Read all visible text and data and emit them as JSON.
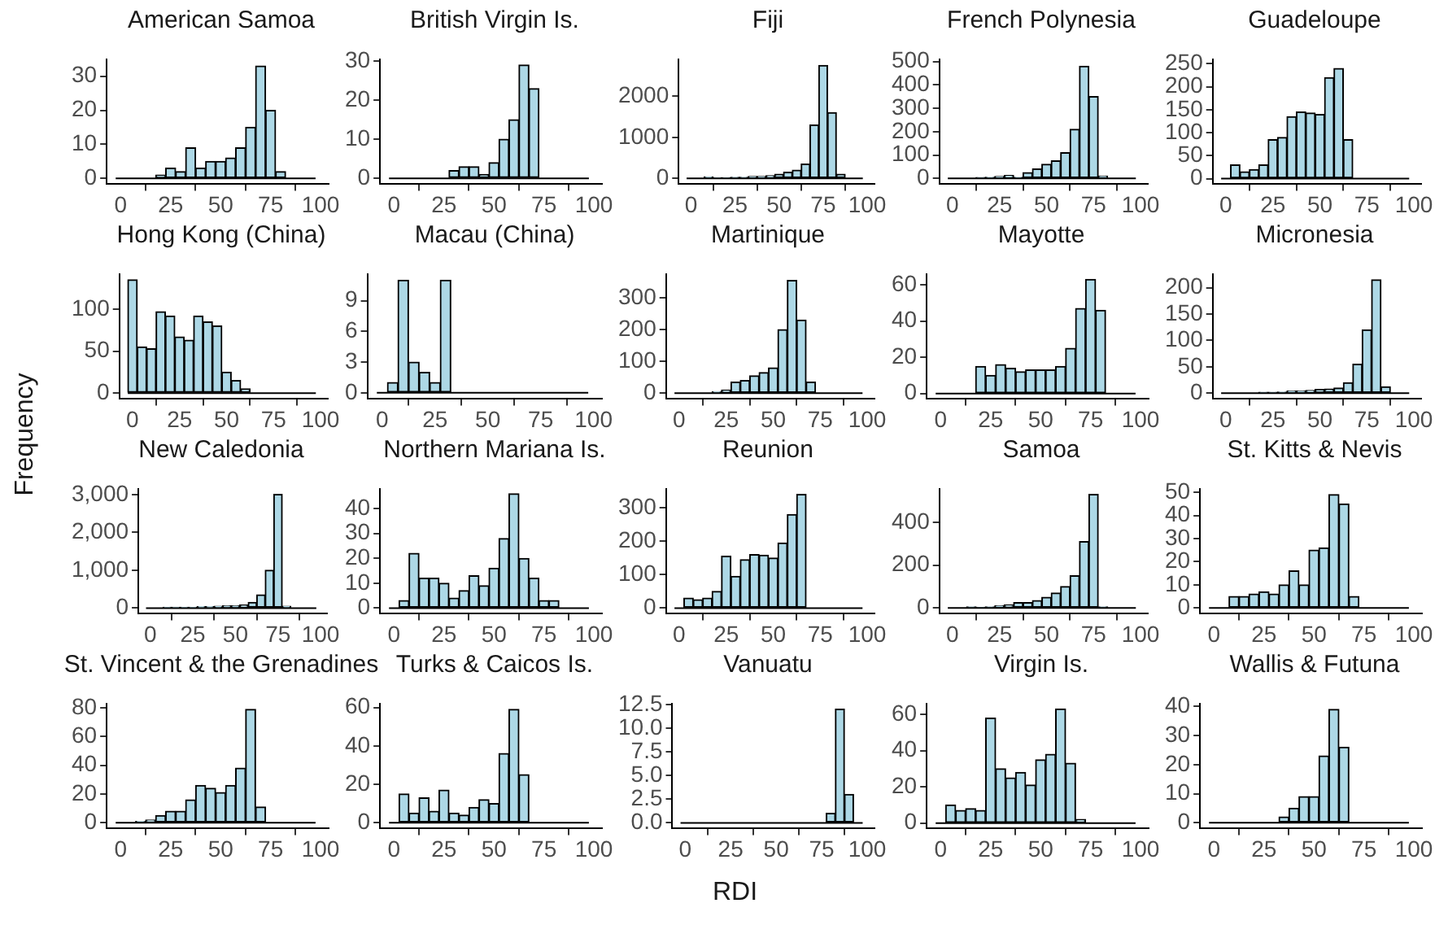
{
  "chart_data": [
    {
      "type": "histogram",
      "title": "American Samoa",
      "bins": [
        -2.5,
        2.5,
        7.5,
        12.5,
        17.5,
        22.5,
        27.5,
        32.5,
        37.5,
        42.5,
        47.5,
        52.5,
        57.5,
        62.5,
        67.5,
        72.5,
        77.5,
        82.5,
        87.5,
        92.5,
        97.5
      ],
      "values": [
        0,
        0,
        0,
        0,
        1,
        3,
        2,
        9,
        3,
        5,
        5,
        6,
        9,
        15,
        33,
        20,
        2,
        0,
        0,
        0
      ],
      "color": "#add8e6",
      "xlim": [
        -7,
        104
      ],
      "xticks": [
        0,
        25,
        50,
        75,
        100
      ],
      "ylim": [
        -1.7,
        35
      ],
      "yticks": [
        0,
        10,
        20,
        30
      ]
    },
    {
      "type": "histogram",
      "title": "British Virgin Is.",
      "bins": [
        -2.5,
        2.5,
        7.5,
        12.5,
        17.5,
        22.5,
        27.5,
        32.5,
        37.5,
        42.5,
        47.5,
        52.5,
        57.5,
        62.5,
        67.5,
        72.5,
        77.5,
        82.5,
        87.5,
        92.5,
        97.5
      ],
      "values": [
        0,
        0,
        0,
        0,
        0,
        0,
        2,
        3,
        3,
        1,
        4,
        10,
        15,
        29,
        23,
        0,
        0,
        0,
        0,
        0
      ],
      "color": "#add8e6",
      "xlim": [
        -7,
        104
      ],
      "xticks": [
        0,
        25,
        50,
        75,
        100
      ],
      "ylim": [
        -1.5,
        30.5
      ],
      "yticks": [
        0,
        10,
        20,
        30
      ]
    },
    {
      "type": "histogram",
      "title": "Fiji",
      "bins": [
        -2.5,
        2.5,
        7.5,
        12.5,
        17.5,
        22.5,
        27.5,
        32.5,
        37.5,
        42.5,
        47.5,
        52.5,
        57.5,
        62.5,
        67.5,
        72.5,
        77.5,
        82.5,
        87.5,
        92.5,
        97.5
      ],
      "values": [
        0,
        0,
        40,
        20,
        20,
        30,
        30,
        50,
        50,
        70,
        100,
        150,
        200,
        350,
        1300,
        2750,
        1600,
        100,
        0,
        0
      ],
      "color": "#add8e6",
      "xlim": [
        -7,
        104
      ],
      "xticks": [
        0,
        25,
        50,
        75,
        100
      ],
      "ylim": [
        -140,
        2900
      ],
      "yticks": [
        0,
        1000,
        2000
      ]
    },
    {
      "type": "histogram",
      "title": "French Polynesia",
      "bins": [
        -2.5,
        2.5,
        7.5,
        12.5,
        17.5,
        22.5,
        27.5,
        32.5,
        37.5,
        42.5,
        47.5,
        52.5,
        57.5,
        62.5,
        67.5,
        72.5,
        77.5,
        82.5,
        87.5,
        92.5,
        97.5
      ],
      "values": [
        0,
        0,
        0,
        3,
        5,
        8,
        12,
        5,
        25,
        40,
        60,
        75,
        110,
        210,
        480,
        350,
        10,
        0,
        0,
        0
      ],
      "color": "#add8e6",
      "xlim": [
        -7,
        104
      ],
      "xticks": [
        0,
        25,
        50,
        75,
        100
      ],
      "ylim": [
        -25,
        510
      ],
      "yticks": [
        0,
        100,
        200,
        300,
        400,
        500
      ]
    },
    {
      "type": "histogram",
      "title": "Guadeloupe",
      "bins": [
        -2.5,
        2.5,
        7.5,
        12.5,
        17.5,
        22.5,
        27.5,
        32.5,
        37.5,
        42.5,
        47.5,
        52.5,
        57.5,
        62.5,
        67.5,
        72.5,
        77.5,
        82.5,
        87.5,
        92.5,
        97.5
      ],
      "values": [
        0,
        30,
        15,
        20,
        30,
        85,
        90,
        135,
        145,
        143,
        140,
        220,
        240,
        85,
        0,
        0,
        0,
        0,
        0,
        0
      ],
      "color": "#add8e6",
      "xlim": [
        -7,
        104
      ],
      "xticks": [
        0,
        25,
        50,
        75,
        100
      ],
      "ylim": [
        -12,
        260
      ],
      "yticks": [
        0,
        50,
        100,
        150,
        200,
        250
      ]
    },
    {
      "type": "histogram",
      "title": "Hong Kong (China)",
      "bins": [
        -2.5,
        2.5,
        7.5,
        12.5,
        17.5,
        22.5,
        27.5,
        32.5,
        37.5,
        42.5,
        47.5,
        52.5,
        57.5,
        62.5,
        67.5,
        72.5,
        77.5,
        82.5,
        87.5,
        92.5,
        97.5
      ],
      "values": [
        135,
        55,
        53,
        97,
        92,
        67,
        63,
        92,
        85,
        80,
        25,
        15,
        5,
        0,
        0,
        0,
        0,
        0,
        0,
        0
      ],
      "color": "#add8e6",
      "xlim": [
        -7,
        104
      ],
      "xticks": [
        0,
        25,
        50,
        75,
        100
      ],
      "ylim": [
        -7,
        142
      ],
      "yticks": [
        0,
        50,
        100
      ]
    },
    {
      "type": "histogram",
      "title": "Macau (China)",
      "bins": [
        -2.5,
        2.5,
        7.5,
        12.5,
        17.5,
        22.5,
        27.5,
        32.5,
        37.5,
        42.5,
        47.5,
        52.5,
        57.5,
        62.5,
        67.5,
        72.5,
        77.5,
        82.5,
        87.5,
        92.5,
        97.5
      ],
      "values": [
        0,
        1,
        11,
        3,
        2,
        1,
        11,
        0,
        0,
        0,
        0,
        0,
        0,
        0,
        0,
        0,
        0,
        0,
        0,
        0
      ],
      "color": "#add8e6",
      "xlim": [
        -7,
        104
      ],
      "xticks": [
        0,
        25,
        50,
        75,
        100
      ],
      "ylim": [
        -0.6,
        11.6
      ],
      "yticks": [
        0,
        3,
        6,
        9
      ]
    },
    {
      "type": "histogram",
      "title": "Martinique",
      "bins": [
        -2.5,
        2.5,
        7.5,
        12.5,
        17.5,
        22.5,
        27.5,
        32.5,
        37.5,
        42.5,
        47.5,
        52.5,
        57.5,
        62.5,
        67.5,
        72.5,
        77.5,
        82.5,
        87.5,
        92.5,
        97.5
      ],
      "values": [
        0,
        0,
        0,
        0,
        5,
        10,
        35,
        40,
        55,
        65,
        80,
        200,
        355,
        230,
        35,
        0,
        0,
        0,
        0,
        0
      ],
      "color": "#add8e6",
      "xlim": [
        -7,
        104
      ],
      "xticks": [
        0,
        25,
        50,
        75,
        100
      ],
      "ylim": [
        -18,
        375
      ],
      "yticks": [
        0,
        100,
        200,
        300
      ]
    },
    {
      "type": "histogram",
      "title": "Mayotte",
      "bins": [
        -2.5,
        2.5,
        7.5,
        12.5,
        17.5,
        22.5,
        27.5,
        32.5,
        37.5,
        42.5,
        47.5,
        52.5,
        57.5,
        62.5,
        67.5,
        72.5,
        77.5,
        82.5,
        87.5,
        92.5,
        97.5
      ],
      "values": [
        0,
        0,
        0,
        0,
        15,
        10,
        16,
        14,
        12,
        13,
        13,
        13,
        15,
        25,
        47,
        63,
        46,
        0,
        0,
        0
      ],
      "color": "#add8e6",
      "xlim": [
        -7,
        104
      ],
      "xticks": [
        0,
        25,
        50,
        75,
        100
      ],
      "ylim": [
        -3,
        66
      ],
      "yticks": [
        0,
        20,
        40,
        60
      ]
    },
    {
      "type": "histogram",
      "title": "Micronesia",
      "bins": [
        -2.5,
        2.5,
        7.5,
        12.5,
        17.5,
        22.5,
        27.5,
        32.5,
        37.5,
        42.5,
        47.5,
        52.5,
        57.5,
        62.5,
        67.5,
        72.5,
        77.5,
        82.5,
        87.5,
        92.5,
        97.5
      ],
      "values": [
        0,
        0,
        0,
        0,
        1,
        1,
        2,
        4,
        4,
        5,
        7,
        8,
        10,
        20,
        55,
        120,
        215,
        12,
        0,
        0
      ],
      "color": "#add8e6",
      "xlim": [
        -7,
        104
      ],
      "xticks": [
        0,
        25,
        50,
        75,
        100
      ],
      "ylim": [
        -11,
        226
      ],
      "yticks": [
        0,
        50,
        100,
        150,
        200
      ]
    },
    {
      "type": "histogram",
      "title": "New Caledonia",
      "ylabel": "Frequency",
      "bins": [
        -2.5,
        2.5,
        7.5,
        12.5,
        17.5,
        22.5,
        27.5,
        32.5,
        37.5,
        42.5,
        47.5,
        52.5,
        57.5,
        62.5,
        67.5,
        72.5,
        77.5,
        82.5,
        87.5,
        92.5,
        97.5
      ],
      "values": [
        0,
        0,
        20,
        10,
        20,
        20,
        40,
        40,
        50,
        60,
        60,
        80,
        150,
        350,
        1000,
        3000,
        50,
        0,
        0,
        0
      ],
      "color": "#add8e6",
      "xlim": [
        -7,
        104
      ],
      "xticks": [
        0,
        25,
        50,
        75,
        100
      ],
      "ylim": [
        -150,
        3150
      ],
      "yticks": [
        0,
        {
          "value": 1000,
          "label": "1,000"
        },
        {
          "value": 2000,
          "label": "2,000"
        },
        {
          "value": 3000,
          "label": "3,000"
        }
      ]
    },
    {
      "type": "histogram",
      "title": "Northern Mariana Is.",
      "bins": [
        -2.5,
        2.5,
        7.5,
        12.5,
        17.5,
        22.5,
        27.5,
        32.5,
        37.5,
        42.5,
        47.5,
        52.5,
        57.5,
        62.5,
        67.5,
        72.5,
        77.5,
        82.5,
        87.5,
        92.5,
        97.5
      ],
      "values": [
        0,
        3,
        22,
        12,
        12,
        10,
        4,
        7,
        13,
        9,
        16,
        28,
        46,
        20,
        12,
        3,
        3,
        0,
        0,
        0
      ],
      "color": "#add8e6",
      "xlim": [
        -7,
        104
      ],
      "xticks": [
        0,
        25,
        50,
        75,
        100
      ],
      "ylim": [
        -2.3,
        48
      ],
      "yticks": [
        0,
        10,
        20,
        30,
        40
      ]
    },
    {
      "type": "histogram",
      "title": "Reunion",
      "bins": [
        -2.5,
        2.5,
        7.5,
        12.5,
        17.5,
        22.5,
        27.5,
        32.5,
        37.5,
        42.5,
        47.5,
        52.5,
        57.5,
        62.5,
        67.5,
        72.5,
        77.5,
        82.5,
        87.5,
        92.5,
        97.5
      ],
      "values": [
        0,
        30,
        25,
        30,
        50,
        155,
        95,
        145,
        160,
        158,
        150,
        195,
        280,
        340,
        0,
        0,
        0,
        0,
        0,
        0
      ],
      "color": "#add8e6",
      "xlim": [
        -7,
        104
      ],
      "xticks": [
        0,
        25,
        50,
        75,
        100
      ],
      "ylim": [
        -17,
        357
      ],
      "yticks": [
        0,
        100,
        200,
        300
      ]
    },
    {
      "type": "histogram",
      "title": "Samoa",
      "bins": [
        -2.5,
        2.5,
        7.5,
        12.5,
        17.5,
        22.5,
        27.5,
        32.5,
        37.5,
        42.5,
        47.5,
        52.5,
        57.5,
        62.5,
        67.5,
        72.5,
        77.5,
        82.5,
        87.5,
        92.5,
        97.5
      ],
      "values": [
        0,
        0,
        5,
        3,
        5,
        10,
        15,
        25,
        25,
        35,
        50,
        70,
        100,
        150,
        310,
        530,
        5,
        0,
        0,
        0
      ],
      "color": "#add8e6",
      "xlim": [
        -7,
        104
      ],
      "xticks": [
        0,
        25,
        50,
        75,
        100
      ],
      "ylim": [
        -27,
        556
      ],
      "yticks": [
        0,
        200,
        400
      ]
    },
    {
      "type": "histogram",
      "title": "St. Kitts & Nevis",
      "bins": [
        -2.5,
        2.5,
        7.5,
        12.5,
        17.5,
        22.5,
        27.5,
        32.5,
        37.5,
        42.5,
        47.5,
        52.5,
        57.5,
        62.5,
        67.5,
        72.5,
        77.5,
        82.5,
        87.5,
        92.5,
        97.5
      ],
      "values": [
        0,
        0,
        5,
        5,
        6,
        7,
        6,
        10,
        16,
        10,
        25,
        26,
        49,
        45,
        5,
        0,
        0,
        0,
        0,
        0
      ],
      "color": "#add8e6",
      "xlim": [
        -7,
        104
      ],
      "xticks": [
        0,
        25,
        50,
        75,
        100
      ],
      "ylim": [
        -2.5,
        51.5
      ],
      "yticks": [
        0,
        10,
        20,
        30,
        40,
        50
      ]
    },
    {
      "type": "histogram",
      "title": "St. Vincent & the Grenadines",
      "bins": [
        -2.5,
        2.5,
        7.5,
        12.5,
        17.5,
        22.5,
        27.5,
        32.5,
        37.5,
        42.5,
        47.5,
        52.5,
        57.5,
        62.5,
        67.5,
        72.5,
        77.5,
        82.5,
        87.5,
        92.5,
        97.5
      ],
      "values": [
        0,
        0,
        1,
        2,
        5,
        8,
        8,
        16,
        26,
        24,
        21,
        26,
        38,
        79,
        11,
        0,
        0,
        0,
        0,
        0
      ],
      "color": "#add8e6",
      "xlim": [
        -7,
        104
      ],
      "xticks": [
        0,
        25,
        50,
        75,
        100
      ],
      "ylim": [
        -4,
        83
      ],
      "yticks": [
        0,
        20,
        40,
        60,
        80
      ]
    },
    {
      "type": "histogram",
      "title": "Turks & Caicos Is.",
      "bins": [
        -2.5,
        2.5,
        7.5,
        12.5,
        17.5,
        22.5,
        27.5,
        32.5,
        37.5,
        42.5,
        47.5,
        52.5,
        57.5,
        62.5,
        67.5,
        72.5,
        77.5,
        82.5,
        87.5,
        92.5,
        97.5
      ],
      "values": [
        0,
        15,
        5,
        13,
        6,
        17,
        5,
        4,
        8,
        12,
        10,
        36,
        59,
        25,
        0,
        0,
        0,
        0,
        0,
        0
      ],
      "color": "#add8e6",
      "xlim": [
        -7,
        104
      ],
      "xticks": [
        0,
        25,
        50,
        75,
        100
      ],
      "ylim": [
        -3,
        62
      ],
      "yticks": [
        0,
        20,
        40,
        60
      ]
    },
    {
      "type": "histogram",
      "title": "Vanuatu",
      "xlabel": "RDI",
      "bins": [
        -2.5,
        2.5,
        7.5,
        12.5,
        17.5,
        22.5,
        27.5,
        32.5,
        37.5,
        42.5,
        47.5,
        52.5,
        57.5,
        62.5,
        67.5,
        72.5,
        77.5,
        82.5,
        87.5,
        92.5,
        97.5
      ],
      "values": [
        0,
        0,
        0,
        0,
        0,
        0,
        0,
        0,
        0,
        0,
        0,
        0,
        0,
        0,
        0,
        0,
        1,
        12,
        3,
        0
      ],
      "color": "#add8e6",
      "xlim": [
        -7,
        104
      ],
      "xticks": [
        0,
        25,
        50,
        75,
        100
      ],
      "ylim": [
        -0.6,
        12.6
      ],
      "yticks": [
        {
          "value": 0,
          "label": "0.0"
        },
        {
          "value": 2.5,
          "label": "2.5"
        },
        {
          "value": 5,
          "label": "5.0"
        },
        {
          "value": 7.5,
          "label": "7.5"
        },
        {
          "value": 10,
          "label": "10.0"
        },
        {
          "value": 12.5,
          "label": "12.5"
        }
      ]
    },
    {
      "type": "histogram",
      "title": "Virgin Is.",
      "bins": [
        -2.5,
        2.5,
        7.5,
        12.5,
        17.5,
        22.5,
        27.5,
        32.5,
        37.5,
        42.5,
        47.5,
        52.5,
        57.5,
        62.5,
        67.5,
        72.5,
        77.5,
        82.5,
        87.5,
        92.5,
        97.5
      ],
      "values": [
        0,
        10,
        7,
        8,
        7,
        58,
        30,
        25,
        28,
        21,
        35,
        38,
        63,
        33,
        2,
        0,
        0,
        0,
        0,
        0
      ],
      "color": "#add8e6",
      "xlim": [
        -7,
        104
      ],
      "xticks": [
        0,
        25,
        50,
        75,
        100
      ],
      "ylim": [
        -3,
        66
      ],
      "yticks": [
        0,
        20,
        40,
        60
      ]
    },
    {
      "type": "histogram",
      "title": "Wallis & Futuna",
      "bins": [
        -2.5,
        2.5,
        7.5,
        12.5,
        17.5,
        22.5,
        27.5,
        32.5,
        37.5,
        42.5,
        47.5,
        52.5,
        57.5,
        62.5,
        67.5,
        72.5,
        77.5,
        82.5,
        87.5,
        92.5,
        97.5
      ],
      "values": [
        0,
        0,
        0,
        0,
        0,
        0,
        0,
        2,
        5,
        9,
        9,
        23,
        39,
        26,
        0,
        0,
        0,
        0,
        0,
        0
      ],
      "color": "#add8e6",
      "xlim": [
        -7,
        104
      ],
      "xticks": [
        0,
        25,
        50,
        75,
        100
      ],
      "ylim": [
        -2,
        41
      ],
      "yticks": [
        0,
        10,
        20,
        30,
        40
      ]
    }
  ]
}
